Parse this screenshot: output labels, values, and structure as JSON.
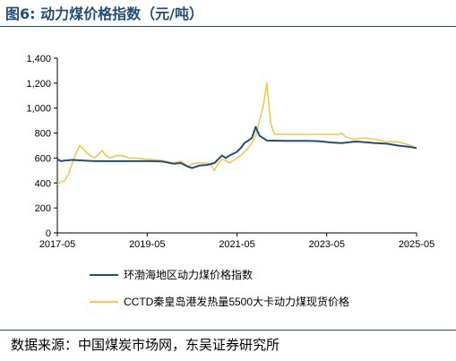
{
  "figure": {
    "title": "图6:  动力煤价格指数（元/吨）",
    "source": "数据来源：中国煤炭市场网，东吴证券研究所"
  },
  "colors": {
    "series1": "#1f4e79",
    "series2": "#f2c94c",
    "axis": "#000000",
    "rule": "#1f4e79"
  },
  "chart_data": {
    "type": "line",
    "xlabel": "",
    "ylabel": "",
    "ylim": [
      0,
      1400
    ],
    "yticks": [
      0,
      200,
      400,
      600,
      800,
      1000,
      1200,
      1400
    ],
    "ytick_labels": [
      "0",
      "200",
      "400",
      "600",
      "800",
      "1,000",
      "1,200",
      "1,400"
    ],
    "xlim": [
      "2017-05",
      "2025-05"
    ],
    "xticks": [
      "2017-05",
      "2019-05",
      "2021-05",
      "2023-05",
      "2025-05"
    ],
    "grid": false,
    "legend_position": "bottom",
    "series": [
      {
        "name": "环渤海地区动力煤价格指数",
        "color": "#1f4e79",
        "points": [
          [
            "2017-05",
            590
          ],
          [
            "2017-06",
            575
          ],
          [
            "2017-07",
            580
          ],
          [
            "2017-09",
            585
          ],
          [
            "2017-12",
            580
          ],
          [
            "2018-03",
            575
          ],
          [
            "2018-06",
            575
          ],
          [
            "2018-09",
            575
          ],
          [
            "2018-12",
            575
          ],
          [
            "2019-03",
            575
          ],
          [
            "2019-06",
            575
          ],
          [
            "2019-09",
            572
          ],
          [
            "2019-12",
            555
          ],
          [
            "2020-02",
            560
          ],
          [
            "2020-04",
            530
          ],
          [
            "2020-05",
            520
          ],
          [
            "2020-07",
            540
          ],
          [
            "2020-09",
            545
          ],
          [
            "2020-11",
            560
          ],
          [
            "2020-12",
            590
          ],
          [
            "2021-01",
            620
          ],
          [
            "2021-02",
            600
          ],
          [
            "2021-03",
            620
          ],
          [
            "2021-05",
            650
          ],
          [
            "2021-06",
            680
          ],
          [
            "2021-07",
            720
          ],
          [
            "2021-08",
            740
          ],
          [
            "2021-09",
            760
          ],
          [
            "2021-10",
            850
          ],
          [
            "2021-11",
            780
          ],
          [
            "2021-12",
            760
          ],
          [
            "2022-01",
            740
          ],
          [
            "2022-06",
            737
          ],
          [
            "2022-12",
            737
          ],
          [
            "2023-03",
            735
          ],
          [
            "2023-06",
            725
          ],
          [
            "2023-09",
            720
          ],
          [
            "2023-12",
            730
          ],
          [
            "2024-01",
            732
          ],
          [
            "2024-06",
            720
          ],
          [
            "2024-09",
            715
          ],
          [
            "2024-12",
            700
          ],
          [
            "2025-03",
            690
          ],
          [
            "2025-05",
            680
          ]
        ]
      },
      {
        "name": "CCTD秦皇岛港发热量5500大卡动力煤现货价格",
        "color": "#f2c94c",
        "points": [
          [
            "2017-05",
            390
          ],
          [
            "2017-06",
            410
          ],
          [
            "2017-07",
            420
          ],
          [
            "2017-08",
            470
          ],
          [
            "2017-09",
            560
          ],
          [
            "2017-10",
            640
          ],
          [
            "2017-11",
            700
          ],
          [
            "2017-12",
            670
          ],
          [
            "2018-01",
            640
          ],
          [
            "2018-02",
            615
          ],
          [
            "2018-03",
            600
          ],
          [
            "2018-04",
            630
          ],
          [
            "2018-05",
            660
          ],
          [
            "2018-06",
            620
          ],
          [
            "2018-07",
            600
          ],
          [
            "2018-09",
            620
          ],
          [
            "2018-11",
            615
          ],
          [
            "2018-12",
            600
          ],
          [
            "2019-02",
            600
          ],
          [
            "2019-05",
            590
          ],
          [
            "2019-08",
            585
          ],
          [
            "2019-10",
            575
          ],
          [
            "2019-12",
            560
          ],
          [
            "2020-02",
            575
          ],
          [
            "2020-04",
            530
          ],
          [
            "2020-05",
            555
          ],
          [
            "2020-07",
            560
          ],
          [
            "2020-09",
            560
          ],
          [
            "2020-10",
            545
          ],
          [
            "2020-11",
            500
          ],
          [
            "2020-12",
            560
          ],
          [
            "2021-01",
            590
          ],
          [
            "2021-02",
            580
          ],
          [
            "2021-03",
            560
          ],
          [
            "2021-05",
            600
          ],
          [
            "2021-06",
            620
          ],
          [
            "2021-07",
            650
          ],
          [
            "2021-08",
            680
          ],
          [
            "2021-09",
            720
          ],
          [
            "2021-10",
            780
          ],
          [
            "2021-11",
            900
          ],
          [
            "2021-12",
            1010
          ],
          [
            "2022-01",
            1200
          ],
          [
            "2022-02",
            880
          ],
          [
            "2022-03",
            790
          ],
          [
            "2022-06",
            790
          ],
          [
            "2022-09",
            790
          ],
          [
            "2022-12",
            790
          ],
          [
            "2023-02",
            790
          ],
          [
            "2023-05",
            790
          ],
          [
            "2023-08",
            790
          ],
          [
            "2023-09",
            800
          ],
          [
            "2023-10",
            770
          ],
          [
            "2023-12",
            750
          ],
          [
            "2024-03",
            760
          ],
          [
            "2024-06",
            750
          ],
          [
            "2024-09",
            730
          ],
          [
            "2024-12",
            730
          ],
          [
            "2025-03",
            705
          ],
          [
            "2025-05",
            680
          ]
        ]
      }
    ]
  }
}
